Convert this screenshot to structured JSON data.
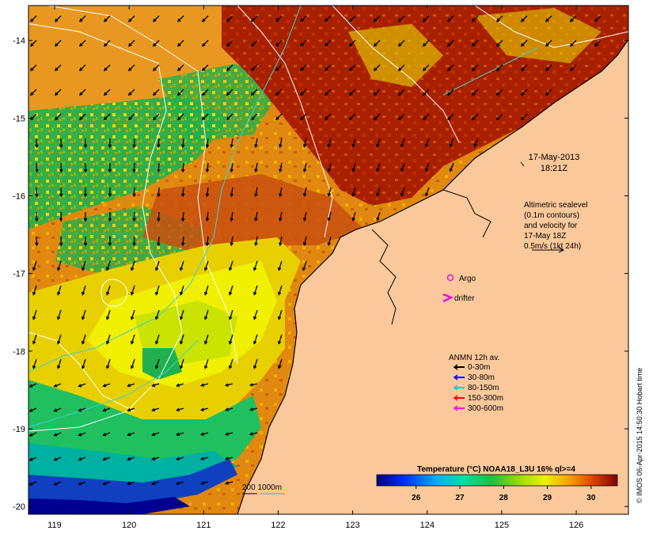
{
  "map": {
    "date_line": "17-May-2013",
    "time_line": "18:21Z",
    "altimetry_note": [
      "Altimetric sealevel",
      "(0.1m contours)",
      "and velocity for",
      "17-May 18Z",
      "0.5m/s (1kt 24h)"
    ],
    "argo_label": "Argo",
    "drifter_label": "drifter",
    "anmn_title": "ANMN 12h av.",
    "anmn_depths": [
      {
        "label": "0-30m",
        "color": "#000000"
      },
      {
        "label": "30-80m",
        "color": "#0000ff"
      },
      {
        "label": "80-150m",
        "color": "#00d0d0"
      },
      {
        "label": "150-300m",
        "color": "#ff0000"
      },
      {
        "label": "300-600m",
        "color": "#ff00ff"
      }
    ],
    "bathy_label": "200  1000m",
    "credit": "© IMOS 06-Apr-2015 14:50:30 Hobart time",
    "x_ticks": [
      119,
      120,
      121,
      122,
      123,
      124,
      125,
      126
    ],
    "y_ticks": [
      -14,
      -15,
      -16,
      -17,
      -18,
      -19,
      -20
    ],
    "lon_range": [
      118.65,
      126.7
    ],
    "lat_range": [
      -13.55,
      -20.1
    ]
  },
  "colorbar": {
    "title": "Temperature (°C) NOAA18_L3U 16% ql>=4",
    "ticks": [
      26,
      27,
      28,
      29,
      30
    ],
    "range": [
      25.1,
      30.6
    ]
  },
  "colors": {
    "land": "#fac89a",
    "cold_blue": "#1040c0",
    "green": "#20c060",
    "yellow": "#f0f000",
    "orange": "#e89010",
    "red_brown": "#a82000",
    "contour": "#ffffff",
    "bathy": "#40d0d0",
    "argo": "#e010e0"
  }
}
